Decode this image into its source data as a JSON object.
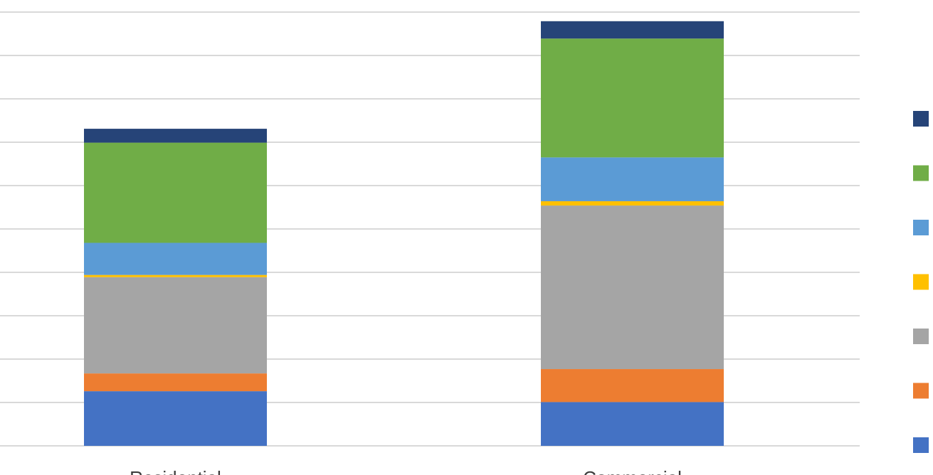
{
  "chart_data": {
    "type": "bar",
    "stacked": true,
    "categories": [
      "Residential",
      "Commercial"
    ],
    "series": [
      {
        "color": "#4472C4",
        "values": [
          1.26,
          1.01
        ]
      },
      {
        "color": "#ED7D31",
        "values": [
          0.41,
          0.76
        ]
      },
      {
        "color": "#A5A5A5",
        "values": [
          2.22,
          3.77
        ]
      },
      {
        "color": "#FFC000",
        "values": [
          0.05,
          0.1
        ]
      },
      {
        "color": "#5B9BD5",
        "values": [
          0.74,
          1.01
        ]
      },
      {
        "color": "#70AD47",
        "values": [
          2.31,
          2.74
        ]
      },
      {
        "color": "#264478",
        "values": [
          0.32,
          0.4
        ]
      }
    ],
    "ylim": [
      0,
      10
    ],
    "grid": true,
    "legend_position": "right"
  }
}
